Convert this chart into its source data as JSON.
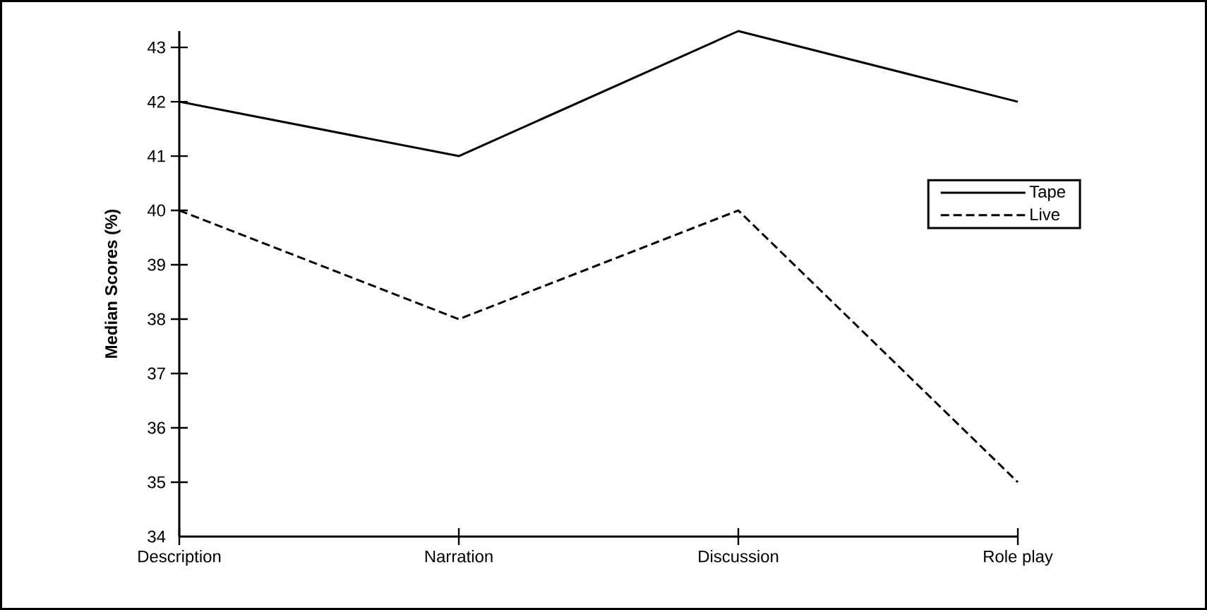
{
  "chart_data": {
    "type": "line",
    "ylabel": "Median Scores (%)",
    "categories": [
      "Description",
      "Narration",
      "Discussion",
      "Role play"
    ],
    "series": [
      {
        "name": "Tape",
        "color": "#000000",
        "line_style": "solid",
        "values": [
          42,
          41,
          43.3,
          42
        ]
      },
      {
        "name": "Live",
        "color": "#000000",
        "line_style": "dashed",
        "values": [
          40,
          38,
          40,
          35
        ]
      }
    ],
    "ylim": [
      34,
      43.3
    ],
    "yticks": [
      34,
      35,
      36,
      37,
      38,
      39,
      40,
      41,
      42,
      43
    ],
    "legend": "right",
    "grid": false,
    "marker": "none"
  }
}
